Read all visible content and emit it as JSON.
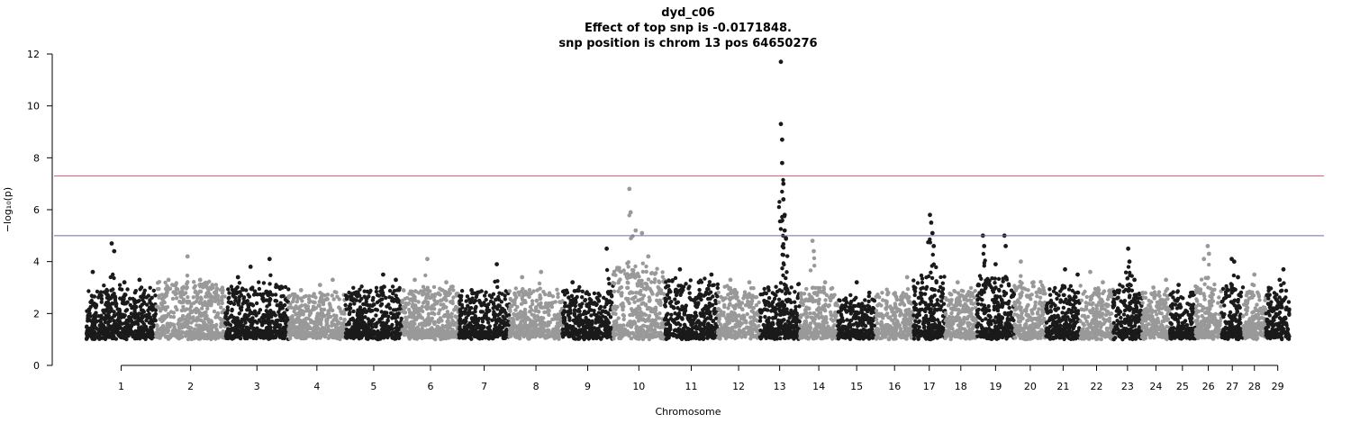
{
  "chart_data": {
    "type": "scatter",
    "title": "dyd_c06",
    "subtitle_lines": [
      "Effect of top snp is -0.0171848.",
      "snp position is chrom 13 pos 64650276"
    ],
    "xlabel": "Chromosome",
    "ylabel": "−log₁₀(p)",
    "ylim": [
      0,
      12
    ],
    "yticks": [
      0,
      2,
      4,
      6,
      8,
      10,
      12
    ],
    "colors": {
      "dark": "#1a1a1a",
      "light": "#999999",
      "genomewide": "#e8606a",
      "suggestive": "#6a6ab0"
    },
    "thresholds": {
      "genomewide": 7.3,
      "suggestive": 5.0
    },
    "baseline_min": 1.0,
    "chromosomes": [
      {
        "label": "1",
        "start": 0.0,
        "end": 5.5,
        "color": "dark",
        "base": 2.0,
        "top": [
          [
            0.5,
            3.6
          ],
          [
            2.0,
            4.7
          ],
          [
            2.2,
            4.4
          ],
          [
            3.0,
            3.2
          ],
          [
            4.2,
            3.3
          ]
        ]
      },
      {
        "label": "2",
        "start": 5.5,
        "end": 11.0,
        "color": "light",
        "base": 2.2,
        "top": [
          [
            6.5,
            3.3
          ],
          [
            8.0,
            4.2
          ],
          [
            9.0,
            3.3
          ],
          [
            10.0,
            3.0
          ]
        ]
      },
      {
        "label": "3",
        "start": 11.0,
        "end": 16.0,
        "color": "dark",
        "base": 2.1,
        "top": [
          [
            12.0,
            3.4
          ],
          [
            13.0,
            3.8
          ],
          [
            14.5,
            4.1
          ],
          [
            15.5,
            3.0
          ]
        ]
      },
      {
        "label": "4",
        "start": 16.0,
        "end": 20.5,
        "color": "light",
        "base": 1.8,
        "top": [
          [
            17.0,
            2.9
          ],
          [
            18.5,
            3.1
          ],
          [
            19.5,
            3.3
          ]
        ]
      },
      {
        "label": "5",
        "start": 20.5,
        "end": 25.0,
        "color": "dark",
        "base": 2.0,
        "top": [
          [
            21.5,
            2.8
          ],
          [
            23.5,
            3.5
          ],
          [
            24.5,
            3.3
          ]
        ]
      },
      {
        "label": "6",
        "start": 25.0,
        "end": 29.5,
        "color": "light",
        "base": 2.0,
        "top": [
          [
            26.0,
            3.3
          ],
          [
            27.0,
            4.1
          ],
          [
            28.5,
            3.2
          ]
        ]
      },
      {
        "label": "7",
        "start": 29.5,
        "end": 33.5,
        "color": "dark",
        "base": 1.8,
        "top": [
          [
            30.5,
            2.9
          ],
          [
            32.5,
            3.9
          ]
        ]
      },
      {
        "label": "8",
        "start": 33.5,
        "end": 37.7,
        "color": "light",
        "base": 1.9,
        "top": [
          [
            34.5,
            3.4
          ],
          [
            36.0,
            3.6
          ]
        ]
      },
      {
        "label": "9",
        "start": 37.7,
        "end": 41.7,
        "color": "dark",
        "base": 2.0,
        "top": [
          [
            38.5,
            3.2
          ],
          [
            41.2,
            4.5
          ]
        ]
      },
      {
        "label": "10",
        "start": 41.7,
        "end": 45.8,
        "color": "light",
        "base": 2.7,
        "top": [
          [
            43.0,
            6.8
          ],
          [
            43.1,
            5.9
          ],
          [
            43.5,
            5.2
          ],
          [
            44.0,
            5.1
          ],
          [
            44.5,
            4.2
          ]
        ]
      },
      {
        "label": "11",
        "start": 45.8,
        "end": 50.0,
        "color": "dark",
        "base": 2.3,
        "top": [
          [
            47.0,
            3.7
          ],
          [
            48.5,
            3.2
          ],
          [
            49.5,
            3.5
          ]
        ]
      },
      {
        "label": "12",
        "start": 50.0,
        "end": 53.3,
        "color": "light",
        "base": 2.0,
        "top": [
          [
            51.0,
            3.3
          ],
          [
            52.5,
            3.2
          ]
        ]
      },
      {
        "label": "13",
        "start": 53.3,
        "end": 56.5,
        "color": "dark",
        "base": 2.0,
        "top": [
          [
            55.0,
            11.7
          ],
          [
            55.0,
            9.3
          ],
          [
            55.1,
            8.7
          ],
          [
            55.1,
            7.8
          ],
          [
            55.2,
            7.0
          ],
          [
            55.2,
            6.4
          ],
          [
            55.3,
            5.8
          ],
          [
            55.3,
            5.2
          ],
          [
            55.4,
            4.9
          ],
          [
            54.0,
            3.0
          ]
        ]
      },
      {
        "label": "14",
        "start": 56.5,
        "end": 59.5,
        "color": "light",
        "base": 2.0,
        "top": [
          [
            57.5,
            4.8
          ],
          [
            57.6,
            4.4
          ],
          [
            58.5,
            3.2
          ]
        ]
      },
      {
        "label": "15",
        "start": 59.5,
        "end": 62.5,
        "color": "dark",
        "base": 1.6,
        "top": [
          [
            61.0,
            3.2
          ],
          [
            62.0,
            2.8
          ]
        ]
      },
      {
        "label": "16",
        "start": 62.5,
        "end": 65.5,
        "color": "light",
        "base": 1.8,
        "top": [
          [
            63.5,
            2.8
          ],
          [
            65.0,
            3.4
          ]
        ]
      },
      {
        "label": "17",
        "start": 65.5,
        "end": 68.0,
        "color": "dark",
        "base": 2.4,
        "top": [
          [
            66.8,
            5.8
          ],
          [
            66.9,
            5.5
          ],
          [
            67.0,
            5.1
          ],
          [
            67.1,
            4.6
          ]
        ]
      },
      {
        "label": "18",
        "start": 68.0,
        "end": 70.5,
        "color": "light",
        "base": 1.9,
        "top": [
          [
            69.0,
            3.2
          ],
          [
            70.0,
            2.8
          ]
        ]
      },
      {
        "label": "19",
        "start": 70.5,
        "end": 73.5,
        "color": "dark",
        "base": 2.4,
        "top": [
          [
            71.0,
            5.0
          ],
          [
            71.1,
            4.6
          ],
          [
            72.7,
            5.0
          ],
          [
            72.8,
            4.6
          ],
          [
            72.0,
            3.9
          ]
        ]
      },
      {
        "label": "20",
        "start": 73.5,
        "end": 76.0,
        "color": "light",
        "base": 2.2,
        "top": [
          [
            74.0,
            4.0
          ],
          [
            75.0,
            3.2
          ]
        ]
      },
      {
        "label": "21",
        "start": 76.0,
        "end": 78.7,
        "color": "dark",
        "base": 2.0,
        "top": [
          [
            77.5,
            3.7
          ],
          [
            78.5,
            3.5
          ]
        ]
      },
      {
        "label": "22",
        "start": 78.7,
        "end": 81.3,
        "color": "light",
        "base": 2.0,
        "top": [
          [
            79.5,
            3.6
          ],
          [
            80.5,
            3.2
          ]
        ]
      },
      {
        "label": "23",
        "start": 81.3,
        "end": 83.6,
        "color": "dark",
        "base": 2.0,
        "top": [
          [
            82.5,
            4.5
          ],
          [
            82.6,
            4.0
          ],
          [
            83.0,
            3.3
          ]
        ]
      },
      {
        "label": "24",
        "start": 83.6,
        "end": 85.8,
        "color": "light",
        "base": 1.9,
        "top": [
          [
            84.5,
            3.0
          ],
          [
            85.5,
            3.3
          ]
        ]
      },
      {
        "label": "25",
        "start": 85.8,
        "end": 87.8,
        "color": "dark",
        "base": 1.8,
        "top": [
          [
            86.5,
            3.1
          ]
        ]
      },
      {
        "label": "26",
        "start": 87.8,
        "end": 89.9,
        "color": "light",
        "base": 2.0,
        "top": [
          [
            88.8,
            4.6
          ],
          [
            88.9,
            4.3
          ],
          [
            88.5,
            4.1
          ]
        ]
      },
      {
        "label": "27",
        "start": 89.9,
        "end": 91.6,
        "color": "dark",
        "base": 2.0,
        "top": [
          [
            90.7,
            4.1
          ],
          [
            90.9,
            4.0
          ],
          [
            91.2,
            3.4
          ]
        ]
      },
      {
        "label": "28",
        "start": 91.6,
        "end": 93.4,
        "color": "light",
        "base": 1.8,
        "top": [
          [
            92.5,
            3.5
          ]
        ]
      },
      {
        "label": "29",
        "start": 93.4,
        "end": 95.3,
        "color": "dark",
        "base": 1.9,
        "top": [
          [
            94.8,
            3.7
          ],
          [
            94.5,
            3.3
          ]
        ]
      }
    ]
  }
}
